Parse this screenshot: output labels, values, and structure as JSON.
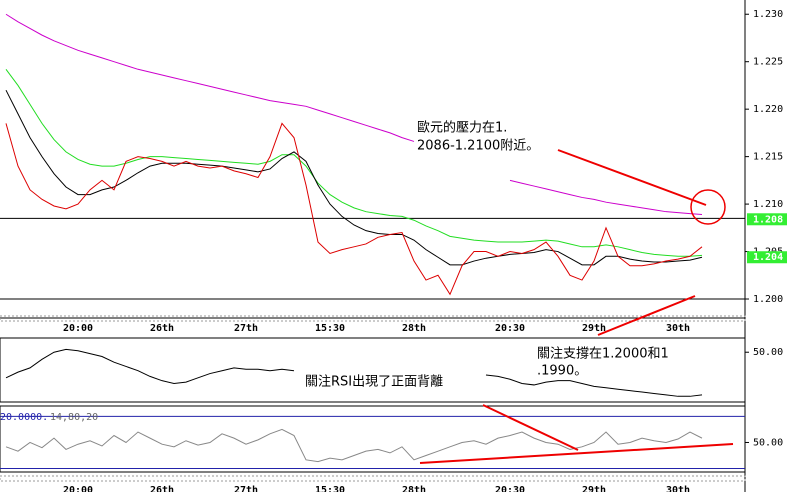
{
  "chart_data": [
    {
      "type": "line",
      "categories": [
        null,
        null,
        null,
        null,
        null,
        null,
        "20:00",
        null,
        null,
        null,
        null,
        null,
        null,
        "26th",
        null,
        null,
        null,
        null,
        null,
        null,
        "27th",
        null,
        null,
        null,
        null,
        null,
        null,
        "15:30",
        null,
        null,
        null,
        null,
        null,
        null,
        "28th",
        null,
        null,
        null,
        null,
        null,
        null,
        null,
        "20:30",
        null,
        null,
        null,
        null,
        null,
        null,
        "29th",
        null,
        null,
        null,
        null,
        null,
        null,
        "30th",
        null,
        null
      ],
      "ylim": [
        1.198,
        1.2315
      ],
      "yticks": [
        {
          "value": 1.23,
          "label": "1.230"
        },
        1.225,
        {
          "value": 1.22,
          "label": "1.220"
        },
        1.215,
        {
          "value": 1.21,
          "label": "1.210"
        },
        1.205,
        {
          "value": 1.2,
          "label": "1.200"
        }
      ],
      "hlines": [
        1.2085,
        1.2
      ],
      "hline_color": "#000000",
      "price_markers": [
        {
          "value": 1.2084,
          "label": "1.208"
        },
        {
          "value": 1.2044,
          "label": "1.204"
        }
      ],
      "marker_color": "#33ee33",
      "annotations": [
        [
          "歐元的壓力在1.",
          "2086-1.2100附近。"
        ],
        [
          "關注支撐在1.2000和1",
          ".1990。"
        ],
        [
          "關注RSI出現了正面背離"
        ]
      ],
      "series": [
        {
          "color": "#cc00cc",
          "values": [
            1.23,
            1.2292,
            1.2285,
            1.2278,
            1.2272,
            1.2267,
            1.2262,
            1.2258,
            1.2254,
            1.225,
            1.2246,
            1.2242,
            1.2239,
            1.2236,
            1.2233,
            1.223,
            1.2227,
            1.2224,
            1.2221,
            1.2218,
            1.2215,
            1.2212,
            1.2209,
            1.2207,
            1.2205,
            1.2203,
            1.2199,
            1.2195,
            1.2191,
            1.2187,
            1.2183,
            1.2179,
            1.2175,
            1.217,
            1.2166,
            null,
            null,
            null,
            null,
            null,
            null,
            null,
            1.2125,
            1.2122,
            1.2119,
            1.2116,
            1.2113,
            1.211,
            1.2107,
            1.2105,
            1.2102,
            1.21,
            1.2098,
            1.2096,
            1.2094,
            1.2092,
            1.2091,
            1.209,
            1.2089
          ]
        },
        {
          "color": "#22dd22",
          "values": [
            1.2242,
            1.2225,
            1.2205,
            1.2185,
            1.2168,
            1.2155,
            1.2147,
            1.2142,
            1.214,
            1.214,
            1.2143,
            1.2147,
            1.215,
            1.215,
            1.2149,
            1.2148,
            1.2147,
            1.2146,
            1.2145,
            1.2144,
            1.2143,
            1.2142,
            1.2145,
            1.2152,
            1.2152,
            1.214,
            1.2122,
            1.211,
            1.2102,
            1.2096,
            1.2092,
            1.209,
            1.2088,
            1.2087,
            1.2083,
            1.2077,
            1.2072,
            1.2066,
            1.2064,
            1.2062,
            1.2061,
            1.206,
            1.206,
            1.206,
            1.2061,
            1.2062,
            1.2061,
            1.2058,
            1.2055,
            1.2055,
            1.2057,
            1.2055,
            1.2052,
            1.2049,
            1.2047,
            1.2046,
            1.2045,
            1.2045,
            1.2046
          ]
        },
        {
          "color": "#000000",
          "values": [
            1.222,
            1.2195,
            1.217,
            1.215,
            1.2132,
            1.2118,
            1.211,
            1.211,
            1.2115,
            1.2118,
            1.2125,
            1.2133,
            1.214,
            1.2143,
            1.2143,
            1.2143,
            1.2142,
            1.2141,
            1.214,
            1.2138,
            1.2136,
            1.2134,
            1.2137,
            1.2148,
            1.2155,
            1.2145,
            1.212,
            1.21,
            1.2087,
            1.2078,
            1.2072,
            1.2069,
            1.2068,
            1.2068,
            1.2062,
            1.2052,
            1.2044,
            1.2036,
            1.2036,
            1.204,
            1.2043,
            1.2045,
            1.2047,
            1.2048,
            1.2049,
            1.2052,
            1.205,
            1.2043,
            1.2036,
            1.2036,
            1.2045,
            1.2045,
            1.2042,
            1.204,
            1.2039,
            1.2039,
            1.204,
            1.2041,
            1.2044
          ]
        },
        {
          "color": "#dd0000",
          "values": [
            1.2185,
            1.214,
            1.2115,
            1.2105,
            1.2098,
            1.2095,
            1.21,
            1.2115,
            1.2125,
            1.2115,
            1.2145,
            1.215,
            1.2148,
            1.2145,
            1.214,
            1.2145,
            1.214,
            1.2138,
            1.214,
            1.2135,
            1.2132,
            1.2128,
            1.215,
            1.2185,
            1.217,
            1.212,
            1.206,
            1.2048,
            1.2052,
            1.2055,
            1.2058,
            1.2065,
            1.2068,
            1.207,
            1.204,
            1.202,
            1.2025,
            1.2005,
            1.2035,
            1.205,
            1.205,
            1.2045,
            1.205,
            1.2048,
            1.2052,
            1.206,
            1.2045,
            1.2025,
            1.202,
            1.204,
            1.2075,
            1.2045,
            1.2035,
            1.2035,
            1.2037,
            1.204,
            1.2042,
            1.2045,
            1.2055
          ]
        }
      ]
    },
    {
      "type": "line",
      "ylim": [
        15,
        60
      ],
      "yticks": [
        {
          "value": 50,
          "label": "50.00"
        }
      ],
      "series": [
        {
          "color": "#000000",
          "values": [
            32,
            36,
            39,
            45,
            50,
            52,
            51,
            49,
            47,
            43,
            40,
            37,
            33,
            30,
            28,
            29,
            32,
            35,
            37,
            39,
            38,
            38,
            37,
            38,
            37,
            null,
            null,
            null,
            null,
            null,
            null,
            null,
            null,
            null,
            null,
            null,
            null,
            null,
            null,
            null,
            34,
            33,
            31,
            28,
            27,
            29,
            30,
            30,
            28,
            26,
            25,
            24,
            23,
            22,
            21,
            20,
            19,
            19,
            20
          ]
        }
      ]
    },
    {
      "type": "line",
      "ylim": [
        16,
        92
      ],
      "yticks": [
        {
          "value": 50,
          "label": "50.00"
        }
      ],
      "hlines": [
        80,
        20
      ],
      "hline_color": "#2222aa",
      "parameters_label": "20.0000.",
      "parameters": "14,80,20",
      "series": [
        {
          "color": "#888888",
          "values": [
            45,
            40,
            50,
            44,
            55,
            42,
            48,
            52,
            46,
            58,
            50,
            62,
            55,
            48,
            45,
            52,
            47,
            50,
            60,
            55,
            48,
            53,
            60,
            65,
            58,
            30,
            28,
            32,
            30,
            35,
            40,
            42,
            38,
            45,
            30,
            35,
            40,
            45,
            50,
            52,
            48,
            55,
            58,
            62,
            55,
            50,
            48,
            42,
            45,
            50,
            62,
            48,
            50,
            55,
            52,
            50,
            54,
            62,
            55
          ]
        }
      ]
    }
  ]
}
